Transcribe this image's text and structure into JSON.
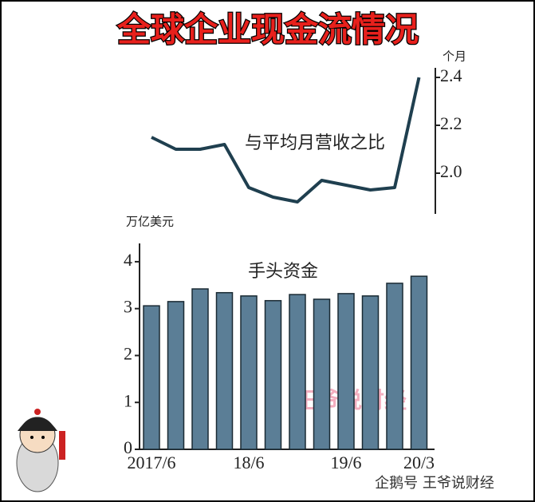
{
  "header": {
    "title": "全球企业现金流情况"
  },
  "footer": {
    "watermark": "王爷说财经",
    "source": "企鹅号 王爷说财经"
  },
  "chart_data": [
    {
      "type": "line",
      "annotation": "与平均月营收之比",
      "y_label": "个月",
      "categories": [
        null,
        null,
        null,
        null,
        null,
        null,
        null,
        null,
        null,
        null,
        null,
        null
      ],
      "values": [
        2.15,
        2.1,
        2.1,
        2.12,
        1.94,
        1.9,
        1.88,
        1.97,
        1.95,
        1.93,
        1.94,
        2.4
      ],
      "color": "#1f3f4f",
      "ylim": [
        1.83,
        2.44
      ],
      "yticks": [
        {
          "value": 2,
          "label": "2.0"
        },
        2.2,
        2.4
      ]
    },
    {
      "type": "bar",
      "annotation": "手头资金",
      "y_label": "万亿美元",
      "categories": [
        "2017/6",
        null,
        null,
        null,
        "18/6",
        null,
        null,
        null,
        "19/6",
        null,
        null,
        "20/3"
      ],
      "values": [
        3.06,
        3.15,
        3.42,
        3.34,
        3.27,
        3.17,
        3.3,
        3.2,
        3.32,
        3.27,
        3.54,
        3.69
      ],
      "color": "#5b7e96",
      "ylim": [
        0,
        4.39
      ],
      "yticks": [
        0,
        1,
        2,
        3,
        4
      ]
    }
  ]
}
